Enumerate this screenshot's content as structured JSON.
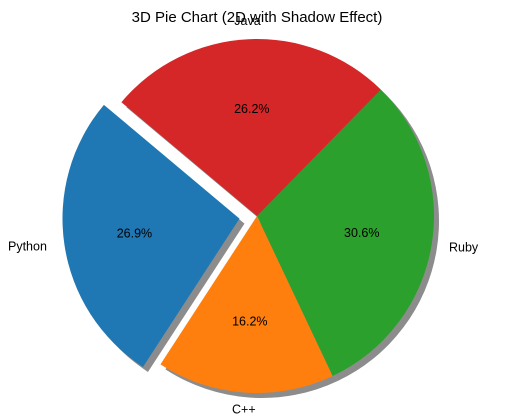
{
  "chart_data": {
    "type": "pie",
    "title": "3D Pie Chart (2D with Shadow Effect)",
    "start_angle_deg": 140,
    "direction": "counterclockwise",
    "shadow": true,
    "slices": [
      {
        "label": "Python",
        "value": 26.9,
        "pct_label": "26.9%",
        "color": "#1f77b4",
        "explode": 0.1
      },
      {
        "label": "C++",
        "value": 16.2,
        "pct_label": "16.2%",
        "color": "#ff7f0e",
        "explode": 0
      },
      {
        "label": "Ruby",
        "value": 30.6,
        "pct_label": "30.6%",
        "color": "#2ca02c",
        "explode": 0
      },
      {
        "label": "Java",
        "value": 26.2,
        "pct_label": "26.2%",
        "color": "#d62728",
        "explode": 0
      }
    ]
  }
}
